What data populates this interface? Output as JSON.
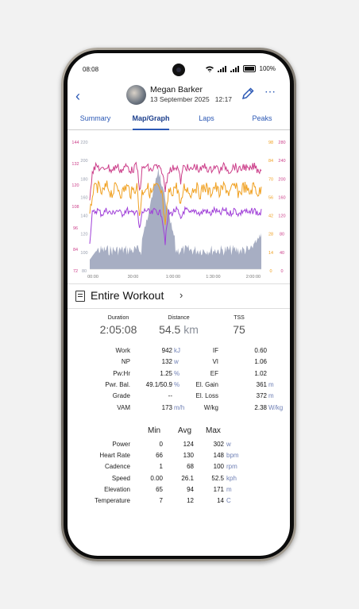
{
  "status": {
    "time": "08:08",
    "battery": "100%"
  },
  "header": {
    "name": "Megan Barker",
    "date": "13 September 2025",
    "clock": "12:17",
    "back_icon": "back-chevron-icon",
    "edit_icon": "pencil-icon",
    "more_icon": "more-dots-icon"
  },
  "tabs": [
    "Summary",
    "Map/Graph",
    "Laps",
    "Peaks"
  ],
  "active_tab": "Map/Graph",
  "chart_data": {
    "type": "line",
    "x_ticks": [
      "00:00",
      "30:00",
      "1:00:00",
      "1:30:00",
      "2:00:00"
    ],
    "left_axis_outer": [
      144,
      132,
      120,
      108,
      96,
      84,
      72
    ],
    "left_axis_inner": [
      220,
      200,
      180,
      160,
      140,
      120,
      100,
      80
    ],
    "right_axis_inner": [
      98,
      84,
      70,
      56,
      42,
      28,
      14,
      0
    ],
    "right_axis_outer": [
      280,
      240,
      200,
      160,
      120,
      80,
      40,
      0
    ],
    "colors": {
      "heart_rate": "#cc3f8a",
      "cadence": "#f0a020",
      "power": "#a040d8",
      "elevation": "#98a0b8"
    }
  },
  "section": {
    "title": "Entire Workout"
  },
  "summary": [
    {
      "label": "Duration",
      "value": "2:05:08",
      "unit": ""
    },
    {
      "label": "Distance",
      "value": "54.5",
      "unit": "km"
    },
    {
      "label": "TSS",
      "value": "75",
      "unit": ""
    }
  ],
  "stats_left": [
    {
      "label": "Work",
      "value": "942",
      "unit": "kJ"
    },
    {
      "label": "NP",
      "value": "132",
      "unit": "w"
    },
    {
      "label": "Pw:Hr",
      "value": "1.25",
      "unit": "%"
    },
    {
      "label": "Pwr. Bal.",
      "value": "49.1/50.9",
      "unit": "%"
    },
    {
      "label": "Grade",
      "value": "--",
      "unit": ""
    },
    {
      "label": "VAM",
      "value": "173",
      "unit": "m/h"
    }
  ],
  "stats_right": [
    {
      "label": "IF",
      "value": "0.60",
      "unit": ""
    },
    {
      "label": "VI",
      "value": "1.06",
      "unit": ""
    },
    {
      "label": "EF",
      "value": "1.02",
      "unit": ""
    },
    {
      "label": "El. Gain",
      "value": "361",
      "unit": "m"
    },
    {
      "label": "El. Loss",
      "value": "372",
      "unit": "m"
    },
    {
      "label": "W/kg",
      "value": "2.38",
      "unit": "W/kg"
    }
  ],
  "metrics_header": [
    "Min",
    "Avg",
    "Max"
  ],
  "metrics": [
    {
      "label": "Power",
      "min": "0",
      "avg": "124",
      "max": "302",
      "unit": "w"
    },
    {
      "label": "Heart Rate",
      "min": "66",
      "avg": "130",
      "max": "148",
      "unit": "bpm"
    },
    {
      "label": "Cadence",
      "min": "1",
      "avg": "68",
      "max": "100",
      "unit": "rpm"
    },
    {
      "label": "Speed",
      "min": "0.00",
      "avg": "26.1",
      "max": "52.5",
      "unit": "kph"
    },
    {
      "label": "Elevation",
      "min": "65",
      "avg": "94",
      "max": "171",
      "unit": "m"
    },
    {
      "label": "Temperature",
      "min": "7",
      "avg": "12",
      "max": "14",
      "unit": "C"
    }
  ]
}
